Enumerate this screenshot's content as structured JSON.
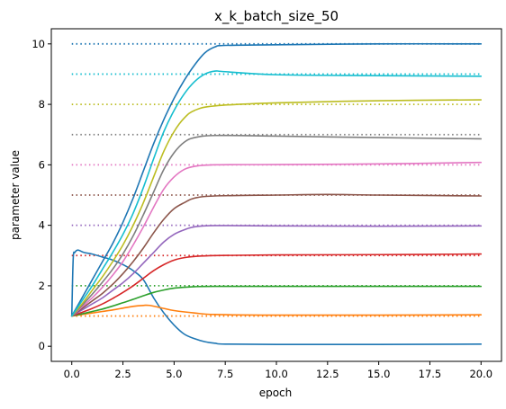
{
  "chart_data": {
    "type": "line",
    "title": "x_k_batch_size_50",
    "xlabel": "epoch",
    "ylabel": "parameter value",
    "xlim": [
      -1,
      21
    ],
    "ylim": [
      -0.5,
      10.5
    ],
    "xticks": [
      0.0,
      2.5,
      5.0,
      7.5,
      10.0,
      12.5,
      15.0,
      17.5,
      20.0
    ],
    "xtick_labels": [
      "0.0",
      "2.5",
      "5.0",
      "7.5",
      "10.0",
      "12.5",
      "15.0",
      "17.5",
      "20.0"
    ],
    "yticks": [
      0,
      2,
      4,
      6,
      8,
      10
    ],
    "ytick_labels": [
      "0",
      "2",
      "4",
      "6",
      "8",
      "10"
    ],
    "grid": false,
    "legend": "none",
    "targets": [
      {
        "value": 1,
        "color": "#ff7f0e"
      },
      {
        "value": 2,
        "color": "#2ca02c"
      },
      {
        "value": 3,
        "color": "#d62728"
      },
      {
        "value": 4,
        "color": "#9467bd"
      },
      {
        "value": 5,
        "color": "#8c564b"
      },
      {
        "value": 6,
        "color": "#e377c2"
      },
      {
        "value": 7,
        "color": "#7f7f7f"
      },
      {
        "value": 8,
        "color": "#bcbd22"
      },
      {
        "value": 9,
        "color": "#17becf"
      },
      {
        "value": 10,
        "color": "#1f77b4"
      }
    ],
    "series": [
      {
        "color": "#1f77b4",
        "points": [
          [
            0,
            1.0
          ],
          [
            0.5,
            1.6
          ],
          [
            1,
            2.2
          ],
          [
            1.5,
            2.8
          ],
          [
            2,
            3.4
          ],
          [
            2.5,
            4.1
          ],
          [
            3,
            4.9
          ],
          [
            3.5,
            5.8
          ],
          [
            4,
            6.7
          ],
          [
            4.5,
            7.5
          ],
          [
            5,
            8.2
          ],
          [
            5.5,
            8.8
          ],
          [
            6,
            9.3
          ],
          [
            6.5,
            9.7
          ],
          [
            7,
            9.9
          ],
          [
            7.5,
            9.95
          ],
          [
            10,
            9.97
          ],
          [
            15,
            10.0
          ],
          [
            20,
            10.0
          ]
        ]
      },
      {
        "color": "#1f77b4",
        "points": [
          [
            0,
            1.0
          ],
          [
            0.07,
            2.9
          ],
          [
            0.15,
            3.1
          ],
          [
            0.3,
            3.18
          ],
          [
            0.6,
            3.1
          ],
          [
            1,
            3.05
          ],
          [
            1.5,
            2.95
          ],
          [
            2,
            2.85
          ],
          [
            2.5,
            2.7
          ],
          [
            3,
            2.5
          ],
          [
            3.5,
            2.2
          ],
          [
            4,
            1.6
          ],
          [
            4.5,
            1.1
          ],
          [
            5,
            0.7
          ],
          [
            5.5,
            0.4
          ],
          [
            6,
            0.25
          ],
          [
            6.5,
            0.15
          ],
          [
            7,
            0.1
          ],
          [
            7.5,
            0.07
          ],
          [
            10,
            0.06
          ],
          [
            15,
            0.06
          ],
          [
            20,
            0.07
          ]
        ]
      },
      {
        "color": "#ff7f0e",
        "points": [
          [
            0,
            1.0
          ],
          [
            0.5,
            1.05
          ],
          [
            1,
            1.1
          ],
          [
            1.5,
            1.15
          ],
          [
            2,
            1.2
          ],
          [
            2.5,
            1.26
          ],
          [
            3,
            1.32
          ],
          [
            3.5,
            1.35
          ],
          [
            3.8,
            1.35
          ],
          [
            4.5,
            1.25
          ],
          [
            5,
            1.18
          ],
          [
            6,
            1.1
          ],
          [
            7,
            1.05
          ],
          [
            10,
            1.03
          ],
          [
            15,
            1.03
          ],
          [
            20,
            1.04
          ]
        ]
      },
      {
        "color": "#2ca02c",
        "points": [
          [
            0,
            1.0
          ],
          [
            0.5,
            1.07
          ],
          [
            1,
            1.15
          ],
          [
            1.5,
            1.23
          ],
          [
            2,
            1.33
          ],
          [
            2.5,
            1.44
          ],
          [
            3,
            1.55
          ],
          [
            3.5,
            1.67
          ],
          [
            4,
            1.78
          ],
          [
            4.5,
            1.86
          ],
          [
            5,
            1.92
          ],
          [
            5.5,
            1.95
          ],
          [
            6,
            1.97
          ],
          [
            7,
            1.98
          ],
          [
            10,
            1.98
          ],
          [
            15,
            1.98
          ],
          [
            20,
            1.98
          ]
        ]
      },
      {
        "color": "#d62728",
        "points": [
          [
            0,
            1.0
          ],
          [
            0.5,
            1.12
          ],
          [
            1,
            1.25
          ],
          [
            1.5,
            1.4
          ],
          [
            2,
            1.58
          ],
          [
            2.5,
            1.78
          ],
          [
            3,
            2.0
          ],
          [
            3.5,
            2.25
          ],
          [
            4,
            2.5
          ],
          [
            4.5,
            2.7
          ],
          [
            5,
            2.85
          ],
          [
            5.5,
            2.93
          ],
          [
            6,
            2.97
          ],
          [
            7,
            3.0
          ],
          [
            10,
            3.02
          ],
          [
            15,
            3.03
          ],
          [
            20,
            3.05
          ]
        ]
      },
      {
        "color": "#9467bd",
        "points": [
          [
            0,
            1.0
          ],
          [
            0.5,
            1.2
          ],
          [
            1,
            1.4
          ],
          [
            1.5,
            1.6
          ],
          [
            2,
            1.85
          ],
          [
            2.5,
            2.1
          ],
          [
            3,
            2.4
          ],
          [
            3.5,
            2.75
          ],
          [
            4,
            3.1
          ],
          [
            4.5,
            3.45
          ],
          [
            5,
            3.7
          ],
          [
            5.5,
            3.85
          ],
          [
            6,
            3.95
          ],
          [
            7,
            3.99
          ],
          [
            10,
            3.98
          ],
          [
            15,
            3.97
          ],
          [
            20,
            3.98
          ]
        ]
      },
      {
        "color": "#8c564b",
        "points": [
          [
            0,
            1.0
          ],
          [
            0.5,
            1.25
          ],
          [
            1,
            1.5
          ],
          [
            1.5,
            1.75
          ],
          [
            2,
            2.05
          ],
          [
            2.5,
            2.4
          ],
          [
            3,
            2.8
          ],
          [
            3.5,
            3.25
          ],
          [
            4,
            3.75
          ],
          [
            4.5,
            4.2
          ],
          [
            5,
            4.55
          ],
          [
            5.5,
            4.75
          ],
          [
            6,
            4.9
          ],
          [
            7,
            4.97
          ],
          [
            10,
            5.0
          ],
          [
            12.5,
            5.02
          ],
          [
            15,
            5.0
          ],
          [
            20,
            4.97
          ]
        ]
      },
      {
        "color": "#e377c2",
        "points": [
          [
            0,
            1.0
          ],
          [
            0.5,
            1.3
          ],
          [
            1,
            1.6
          ],
          [
            1.5,
            1.95
          ],
          [
            2,
            2.35
          ],
          [
            2.5,
            2.8
          ],
          [
            3,
            3.35
          ],
          [
            3.5,
            3.95
          ],
          [
            4,
            4.6
          ],
          [
            4.5,
            5.2
          ],
          [
            5,
            5.6
          ],
          [
            5.5,
            5.85
          ],
          [
            6,
            5.95
          ],
          [
            7,
            6.0
          ],
          [
            10,
            6.01
          ],
          [
            15,
            6.03
          ],
          [
            20,
            6.08
          ]
        ]
      },
      {
        "color": "#7f7f7f",
        "points": [
          [
            0,
            1.0
          ],
          [
            0.5,
            1.35
          ],
          [
            1,
            1.72
          ],
          [
            1.5,
            2.12
          ],
          [
            2,
            2.55
          ],
          [
            2.5,
            3.05
          ],
          [
            3,
            3.65
          ],
          [
            3.5,
            4.35
          ],
          [
            4,
            5.1
          ],
          [
            4.5,
            5.85
          ],
          [
            5,
            6.4
          ],
          [
            5.5,
            6.75
          ],
          [
            6,
            6.9
          ],
          [
            7,
            6.97
          ],
          [
            10,
            6.95
          ],
          [
            15,
            6.9
          ],
          [
            20,
            6.86
          ]
        ]
      },
      {
        "color": "#bcbd22",
        "points": [
          [
            0,
            1.0
          ],
          [
            0.5,
            1.4
          ],
          [
            1,
            1.85
          ],
          [
            1.5,
            2.3
          ],
          [
            2,
            2.8
          ],
          [
            2.5,
            3.35
          ],
          [
            3,
            4.0
          ],
          [
            3.5,
            4.75
          ],
          [
            4,
            5.6
          ],
          [
            4.5,
            6.45
          ],
          [
            5,
            7.1
          ],
          [
            5.5,
            7.55
          ],
          [
            6,
            7.8
          ],
          [
            7,
            7.95
          ],
          [
            10,
            8.05
          ],
          [
            15,
            8.12
          ],
          [
            20,
            8.15
          ]
        ]
      },
      {
        "color": "#17becf",
        "points": [
          [
            0,
            1.0
          ],
          [
            0.5,
            1.5
          ],
          [
            1,
            2.0
          ],
          [
            1.5,
            2.55
          ],
          [
            2,
            3.1
          ],
          [
            2.5,
            3.7
          ],
          [
            3,
            4.4
          ],
          [
            3.5,
            5.25
          ],
          [
            4,
            6.2
          ],
          [
            4.5,
            7.1
          ],
          [
            5,
            7.8
          ],
          [
            5.5,
            8.35
          ],
          [
            6,
            8.75
          ],
          [
            6.5,
            9.0
          ],
          [
            7,
            9.1
          ],
          [
            7.5,
            9.08
          ],
          [
            10,
            8.98
          ],
          [
            15,
            8.95
          ],
          [
            20,
            8.93
          ]
        ]
      }
    ]
  }
}
